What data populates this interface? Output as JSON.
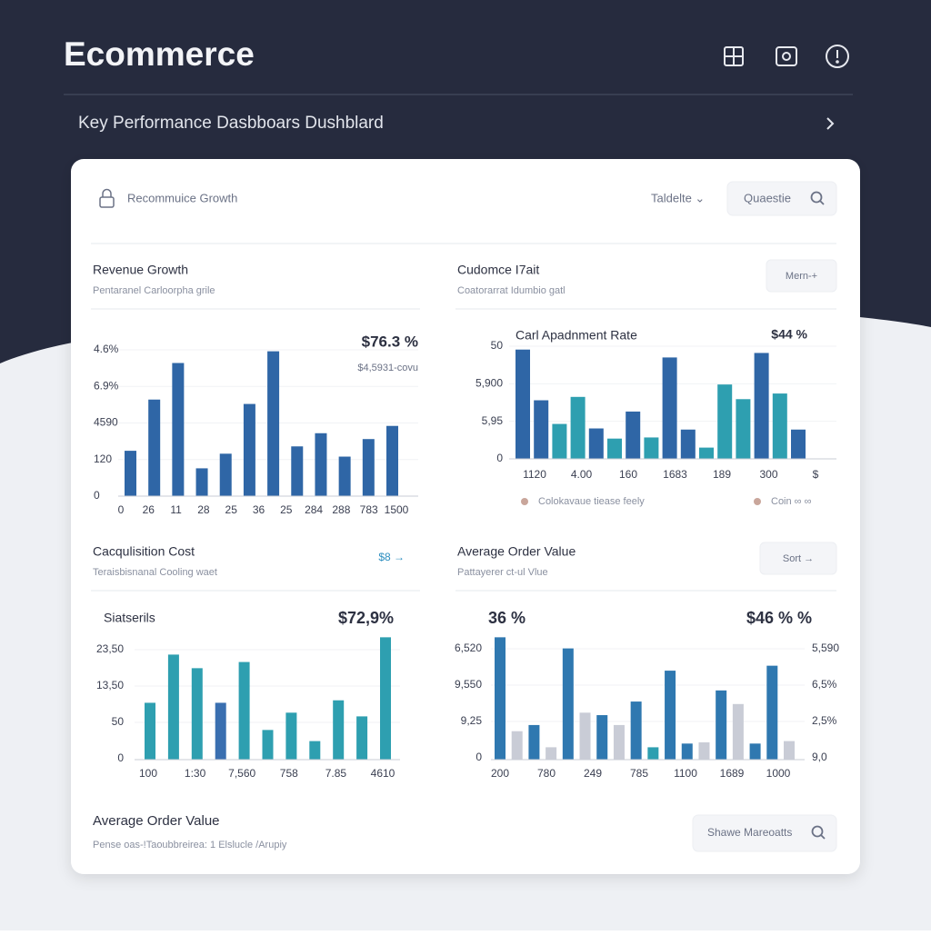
{
  "header": {
    "title": "Ecommerce",
    "subtitle": "Key Performance Dasbboars Dushblard"
  },
  "card": {
    "title": "Recommuice Growth",
    "filter": "Taldelte ⌄",
    "search": "Quaestie"
  },
  "panels": [
    {
      "title": "Revenue Growth",
      "subtitle": "Pentaranel Carloorpha grile",
      "chart": {
        "type": "bar",
        "value": "$76.3 %",
        "note": "$4,5931-covu",
        "ylim": [
          0,
          100
        ],
        "y_labels": [
          "4.6%",
          "6.9%",
          "4590",
          "120",
          "0"
        ],
        "x_labels": [
          "0",
          "26",
          "11",
          "28",
          "25",
          "36",
          "25",
          "284",
          "288",
          "783",
          "1500"
        ],
        "values": [
          31,
          66,
          91,
          19,
          29,
          63,
          99,
          34,
          43,
          27,
          39,
          48
        ],
        "colors": [
          "#2f66a6",
          "#2f66a6",
          "#2f66a6",
          "#2f66a6",
          "#2f66a6",
          "#2f66a6",
          "#2f66a6",
          "#2f66a6",
          "#2f66a6",
          "#2f66a6",
          "#2f66a6",
          "#2f66a6"
        ]
      }
    },
    {
      "title": "Cudomce I7ait",
      "subtitle": "Coatorarrat Idumbio gatl",
      "action": "Mern-+",
      "chart": {
        "type": "bar",
        "label": "Carl Apadnment Rate",
        "value": "$44 %",
        "ylim": [
          0,
          100
        ],
        "y_labels": [
          "50",
          "5,900",
          "5,95",
          "0"
        ],
        "x_labels": [
          "1120",
          "4.00",
          "160",
          "1683",
          "189",
          "300",
          "$"
        ],
        "values": [
          97,
          52,
          31,
          55,
          27,
          18,
          42,
          19,
          90,
          26,
          10,
          66,
          53,
          94,
          58,
          26
        ],
        "colors": [
          "#2f66a6",
          "#2f66a6",
          "#2e9fb0",
          "#2e9fb0",
          "#2f66a6",
          "#2e9fb0",
          "#2f66a6",
          "#2e9fb0",
          "#2f66a6",
          "#2f66a6",
          "#2e9fb0",
          "#2e9fb0",
          "#2e9fb0",
          "#2f66a6",
          "#2e9fb0",
          "#2f66a6"
        ],
        "legend": [
          {
            "label": "Colokavaue tiease feely",
            "color": "#c9a69b"
          },
          {
            "label": "Coin ∞ ∞",
            "color": "#c9a69b"
          }
        ]
      }
    },
    {
      "title": "Cacqulisition Cost",
      "subtitle": "Teraisbisnanal Cooling waet",
      "link": "$8 →",
      "chart": {
        "type": "bar",
        "label": "Siatserils",
        "value": "$72,9%",
        "ylim": [
          0,
          100
        ],
        "y_labels": [
          "23,50",
          "13,50",
          "50",
          "0"
        ],
        "x_labels": [
          "100",
          "1:30",
          "7,560",
          "758",
          "7.85",
          "4610"
        ],
        "values": [
          46,
          85,
          74,
          46,
          79,
          24,
          38,
          15,
          48,
          35,
          99
        ],
        "colors": [
          "#2e9fb0",
          "#2e9fb0",
          "#2e9fb0",
          "#3a6fb0",
          "#2e9fb0",
          "#2e9fb0",
          "#2e9fb0",
          "#2e9fb0",
          "#2e9fb0",
          "#2e9fb0",
          "#2e9fb0"
        ]
      }
    },
    {
      "title": "Average Order Value",
      "subtitle": "Pattayerer ct-ul Vlue",
      "action": "Sort →",
      "chart": {
        "type": "bar",
        "label": "36 %",
        "value": "$46 % %",
        "ylim": [
          0,
          100
        ],
        "y_labels": [
          "6,520",
          "9,550",
          "9,25",
          "0"
        ],
        "y2_labels": [
          "5,590",
          "6,5%",
          "2,5%",
          "9,0"
        ],
        "x_labels": [
          "200",
          "780",
          "249",
          "785",
          "1100",
          "1689",
          "1000"
        ],
        "values": [
          99,
          23,
          28,
          10,
          90,
          38,
          36,
          28,
          47,
          10,
          72,
          13,
          14,
          56,
          45,
          13,
          76,
          15
        ],
        "colors": [
          "#2f78b0",
          "#c9ccd6",
          "#2f78b0",
          "#c9ccd6",
          "#2f78b0",
          "#c9ccd6",
          "#2f78b0",
          "#c9ccd6",
          "#2f78b0",
          "#2e9fb0",
          "#2f78b0",
          "#2f78b0",
          "#c9ccd6",
          "#2f78b0",
          "#c9ccd6",
          "#2f78b0",
          "#2f78b0",
          "#c9ccd6"
        ]
      }
    }
  ],
  "footer": {
    "title": "Average Order Value",
    "subtitle": "Pense oas-!Taoubbreirea: 1 Elslucle /Arupiy",
    "search": "Shawe Mareoatts"
  }
}
